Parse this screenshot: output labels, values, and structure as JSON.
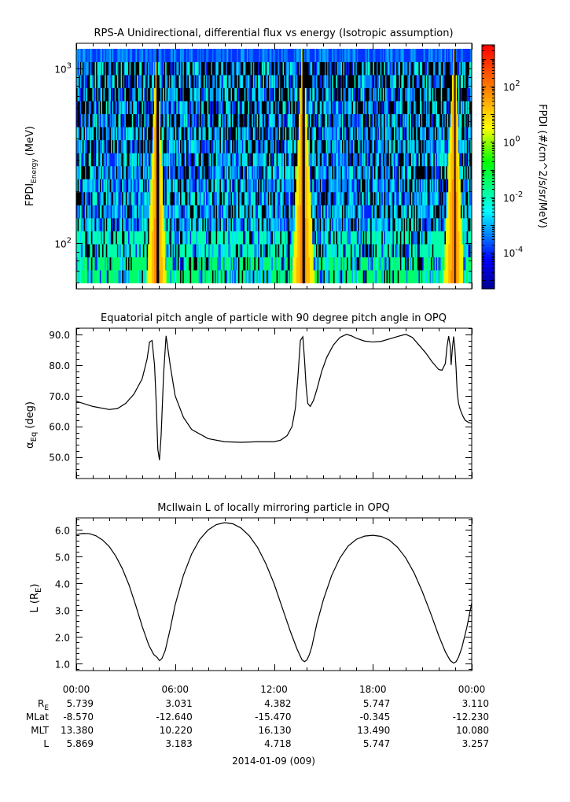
{
  "chart_data": [
    {
      "type": "heatmap",
      "title": "RPS-A Unidirectional, differential flux vs energy (Isotropic assumption)",
      "ylabel": "FPDI",
      "ylabel_sub": "Energy",
      "ylabel_unit": "(MeV)",
      "y_scale": "log",
      "ylim": [
        55,
        1400
      ],
      "y_ticks": [
        {
          "value": 100,
          "label": "10",
          "exp": "2"
        },
        {
          "value": 1000,
          "label": "10",
          "exp": "3"
        }
      ],
      "xlim": [
        0,
        24
      ],
      "energy_bins": 18,
      "time_bins": 320,
      "colorbar": {
        "label": "FPDI (#/cm^2/s/sr/MeV)",
        "scale": "log",
        "range": [
          -5.3,
          3.5
        ],
        "ticks": [
          {
            "value": 2,
            "label": "10",
            "exp": "2"
          },
          {
            "value": 0,
            "label": "10",
            "exp": "0"
          },
          {
            "value": -2,
            "label": "10",
            "exp": "-2"
          },
          {
            "value": -4,
            "label": "10",
            "exp": "-4"
          }
        ]
      },
      "bright_bands_hours": [
        {
          "rise": [
            4.3,
            4.85
          ],
          "peak": 4.9,
          "fall": [
            5.2,
            5.45
          ]
        },
        {
          "rise": [
            13.1,
            13.6
          ],
          "peak": 13.75,
          "fall": [
            14.0,
            14.45
          ]
        },
        {
          "rise": [
            22.3,
            22.8
          ],
          "peak": 22.95,
          "fall": [
            23.1,
            23.5
          ]
        }
      ]
    },
    {
      "type": "line",
      "title": "Equatorial pitch angle of particle with 90 degree pitch angle in OPQ",
      "ylabel": "α",
      "ylabel_sub": "Eq",
      "ylabel_unit": "(deg)",
      "ylim": [
        43,
        92
      ],
      "y_ticks": [
        50,
        60,
        70,
        80,
        90
      ],
      "xlim": [
        0,
        24
      ],
      "x": [
        0,
        1,
        2,
        2.5,
        3,
        3.5,
        4,
        4.3,
        4.45,
        4.6,
        4.75,
        4.85,
        4.95,
        5.05,
        5.15,
        5.3,
        5.45,
        5.7,
        6.0,
        6.5,
        7,
        8,
        9,
        10,
        11,
        12,
        12.4,
        12.8,
        13.1,
        13.3,
        13.45,
        13.6,
        13.75,
        13.85,
        13.95,
        14.05,
        14.2,
        14.4,
        14.6,
        14.9,
        15.2,
        15.6,
        16,
        16.4,
        16.7,
        17,
        17.5,
        18,
        18.5,
        19,
        19.5,
        20,
        20.4,
        20.8,
        21.2,
        21.6,
        22.0,
        22.2,
        22.4,
        22.5,
        22.6,
        22.7,
        22.75,
        22.82,
        22.9,
        22.97,
        23.05,
        23.12,
        23.2,
        23.3,
        23.45,
        23.6,
        23.8,
        24
      ],
      "values": [
        68.2,
        66.5,
        65.5,
        65.8,
        67.5,
        70.5,
        75.5,
        82,
        87.5,
        88,
        80,
        68,
        52.5,
        49,
        57,
        77,
        89.5,
        80,
        70,
        63,
        59,
        56,
        55,
        54.8,
        55,
        55,
        55.5,
        57,
        60,
        66,
        76,
        88,
        89.2,
        82,
        73,
        67.5,
        66.5,
        68.5,
        72,
        78,
        82.5,
        86.5,
        89,
        90,
        89.5,
        88.7,
        87.8,
        87.5,
        87.7,
        88.5,
        89.3,
        90,
        89,
        86.5,
        84,
        81,
        78.5,
        78.3,
        80.5,
        86,
        89.4,
        86,
        80,
        85,
        89.3,
        86,
        79,
        71,
        67.5,
        65.5,
        63.5,
        62,
        61.3,
        61
      ]
    },
    {
      "type": "line",
      "title": "McIlwain L of locally mirroring particle in OPQ",
      "ylabel": "L (R",
      "ylabel_sub": "E",
      "ylabel_unit": ")",
      "ylim": [
        0.75,
        6.45
      ],
      "y_ticks": [
        1,
        2,
        3,
        4,
        5,
        6
      ],
      "xlim": [
        0,
        24
      ],
      "x": [
        0,
        0.4,
        0.8,
        1.2,
        1.6,
        2.0,
        2.4,
        2.8,
        3.2,
        3.6,
        4.0,
        4.4,
        4.7,
        4.9,
        5.05,
        5.2,
        5.4,
        5.7,
        6.0,
        6.5,
        7.0,
        7.5,
        8.0,
        8.5,
        9.0,
        9.5,
        10.0,
        10.5,
        11.0,
        11.5,
        12.0,
        12.5,
        13.0,
        13.4,
        13.7,
        13.85,
        14.0,
        14.15,
        14.3,
        14.6,
        15.0,
        15.5,
        16.0,
        16.5,
        17.0,
        17.5,
        18.0,
        18.5,
        19.0,
        19.5,
        20.0,
        20.5,
        21.0,
        21.5,
        22.0,
        22.4,
        22.7,
        22.9,
        23.05,
        23.2,
        23.4,
        23.7,
        24.0
      ],
      "values": [
        5.83,
        5.87,
        5.86,
        5.78,
        5.62,
        5.38,
        5.02,
        4.55,
        3.95,
        3.2,
        2.4,
        1.7,
        1.35,
        1.25,
        1.12,
        1.2,
        1.5,
        2.3,
        3.2,
        4.3,
        5.1,
        5.65,
        6.0,
        6.2,
        6.27,
        6.23,
        6.07,
        5.78,
        5.35,
        4.75,
        4.0,
        3.1,
        2.2,
        1.55,
        1.15,
        1.08,
        1.15,
        1.35,
        1.65,
        2.5,
        3.4,
        4.3,
        4.95,
        5.4,
        5.65,
        5.77,
        5.8,
        5.76,
        5.62,
        5.35,
        4.95,
        4.4,
        3.7,
        2.9,
        2.05,
        1.45,
        1.12,
        1.03,
        1.08,
        1.25,
        1.6,
        2.35,
        3.27
      ]
    }
  ],
  "x_axis": {
    "tick_labels": [
      "00:00",
      "06:00",
      "12:00",
      "18:00",
      "00:00"
    ],
    "ephemeris_rows": [
      {
        "label": "R",
        "label_sub": "E",
        "values": [
          "5.739",
          "3.031",
          "4.382",
          "5.747",
          "3.110"
        ]
      },
      {
        "label": "MLat",
        "label_sub": "",
        "values": [
          "-8.570",
          "-12.640",
          "-15.470",
          "-0.345",
          "-12.230"
        ]
      },
      {
        "label": "MLT",
        "label_sub": "",
        "values": [
          "13.380",
          "10.220",
          "16.130",
          "13.490",
          "10.080"
        ]
      },
      {
        "label": "L",
        "label_sub": "",
        "values": [
          "5.869",
          "3.183",
          "4.718",
          "5.747",
          "3.257"
        ]
      }
    ],
    "date_label": "2014-01-09 (009)"
  }
}
